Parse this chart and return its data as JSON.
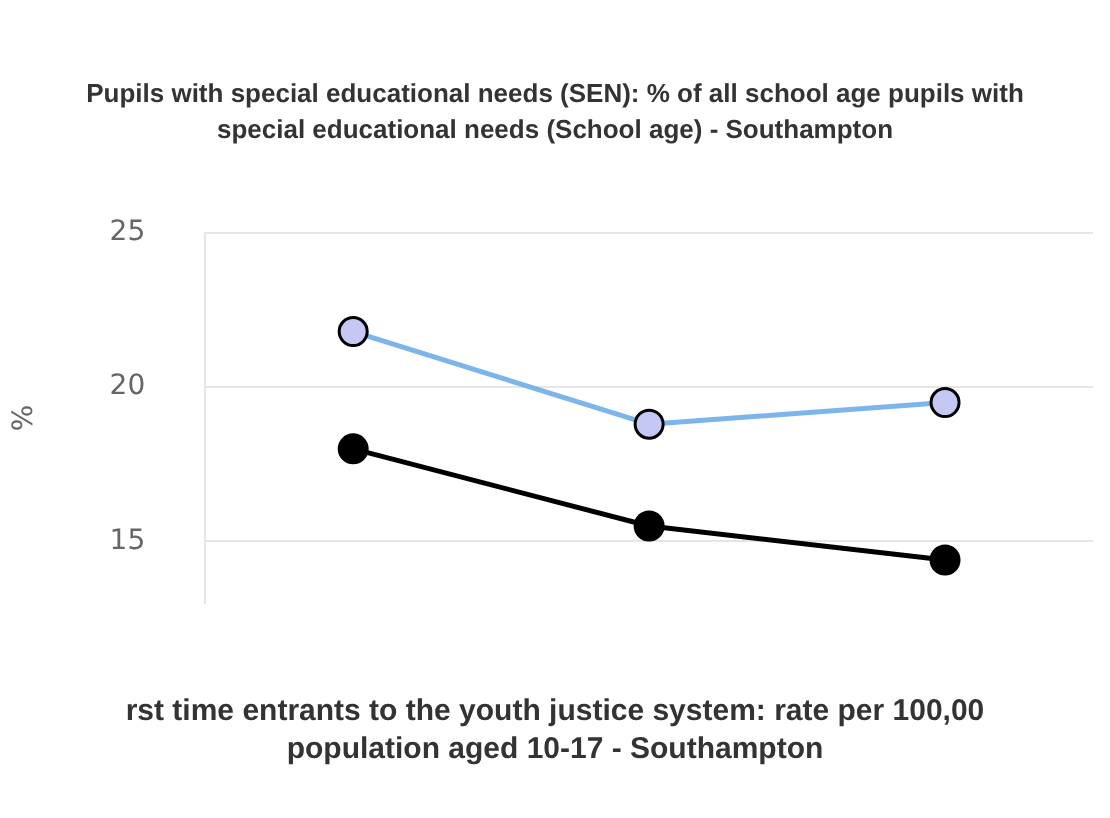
{
  "chart_data": {
    "type": "line",
    "title": "Pupils with special educational needs (SEN): % of all school age pupils with special educational needs (School age) - Southampton",
    "ylabel": "%",
    "categories": [
      null,
      null,
      null
    ],
    "series": [
      {
        "color": "#7cb5ec",
        "values": [
          21.8,
          18.8,
          19.5
        ]
      },
      {
        "color": "#000000",
        "values": [
          18.0,
          15.5,
          14.4
        ]
      }
    ],
    "ylim": [
      13,
      25
    ],
    "yticks": [
      15,
      20,
      25
    ],
    "grid": "y",
    "legend": false,
    "marker": "circle",
    "annotations": [
      "rst time entrants to the youth justice system: rate per 100,00",
      "population aged 10-17 - Southampton"
    ]
  }
}
